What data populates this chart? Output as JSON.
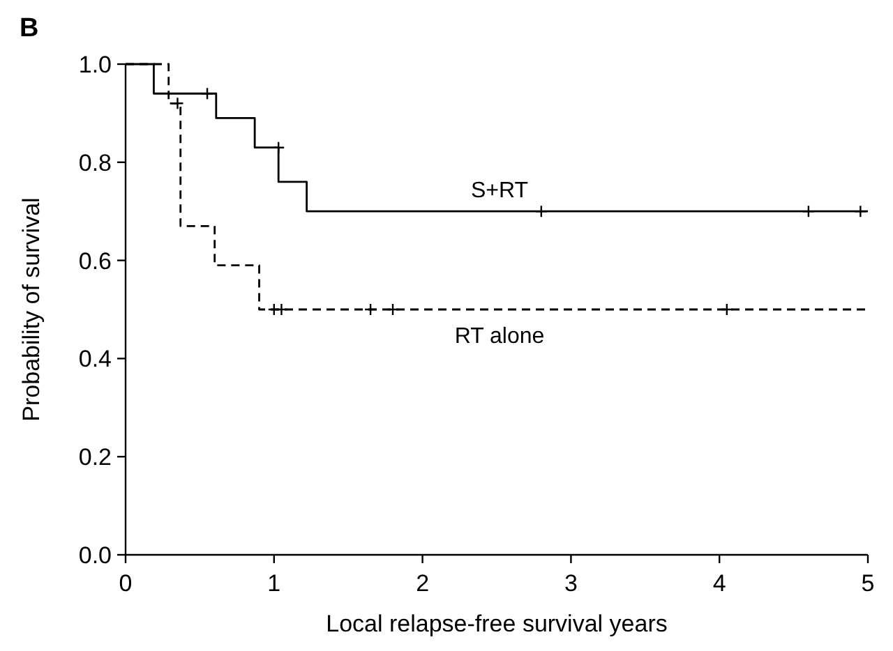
{
  "chart_data": {
    "type": "step",
    "title": "B",
    "xlabel": "Local relapse-free survival years",
    "ylabel": "Probability of survival",
    "xlim": [
      0,
      5
    ],
    "xticks": [
      0,
      1,
      2,
      3,
      4,
      5
    ],
    "ylim": [
      0,
      1
    ],
    "yticks": [
      {
        "value": 0,
        "label": "0.0"
      },
      {
        "value": 0.2,
        "label": "0.2"
      },
      {
        "value": 0.4,
        "label": "0.4"
      },
      {
        "value": 0.6,
        "label": "0.6"
      },
      {
        "value": 0.8,
        "label": "0.8"
      },
      {
        "value": 1,
        "label": "1.0"
      }
    ],
    "grid": false,
    "series": [
      {
        "name": "S+RT",
        "color": "#000000",
        "line_style": "solid",
        "x": [
          0,
          0.19,
          0.61,
          0.87,
          1.03,
          1.22,
          5
        ],
        "values": [
          1,
          0.94,
          0.89,
          0.83,
          0.76,
          0.7,
          0.7
        ]
      },
      {
        "name": "RT alone",
        "color": "#000000",
        "line_style": "dashed",
        "x": [
          0,
          0.29,
          0.37,
          0.6,
          0.9,
          5
        ],
        "values": [
          1,
          0.92,
          0.67,
          0.59,
          0.5,
          0.5
        ]
      },
      {
        "type": "scatter",
        "color": "#000000",
        "marker": "cross",
        "x": [
          0.55,
          1.03,
          2.8,
          4.6,
          4.95
        ],
        "values": [
          0.94,
          0.83,
          0.7,
          0.7,
          0.7
        ]
      },
      {
        "type": "scatter",
        "color": "#000000",
        "marker": "cross",
        "x": [
          0.35,
          1.0,
          1.05,
          1.65,
          1.8,
          4.05
        ],
        "values": [
          0.92,
          0.5,
          0.5,
          0.5,
          0.5,
          0.5
        ]
      }
    ]
  }
}
